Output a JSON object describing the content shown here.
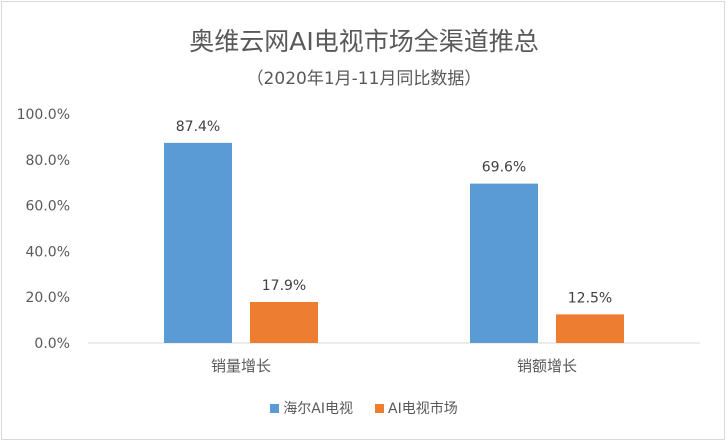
{
  "chart_data": {
    "type": "bar",
    "title": "奥维云网AI电视市场全渠道推总",
    "subtitle": "（2020年1月-11月同比数据）",
    "categories": [
      "销量增长",
      "销额增长"
    ],
    "series": [
      {
        "name": "海尔AI电视",
        "color": "#5b9bd5",
        "values": [
          87.4,
          69.6
        ],
        "labels": [
          "87.4%",
          "69.6%"
        ]
      },
      {
        "name": "AI电视市场",
        "color": "#ed7d31",
        "values": [
          17.9,
          12.5
        ],
        "labels": [
          "17.9%",
          "12.5%"
        ]
      }
    ],
    "yticks": [
      "0.0%",
      "20.0%",
      "40.0%",
      "60.0%",
      "80.0%",
      "100.0%"
    ],
    "ylim": [
      0,
      100
    ],
    "grid": false,
    "legend_position": "bottom"
  }
}
